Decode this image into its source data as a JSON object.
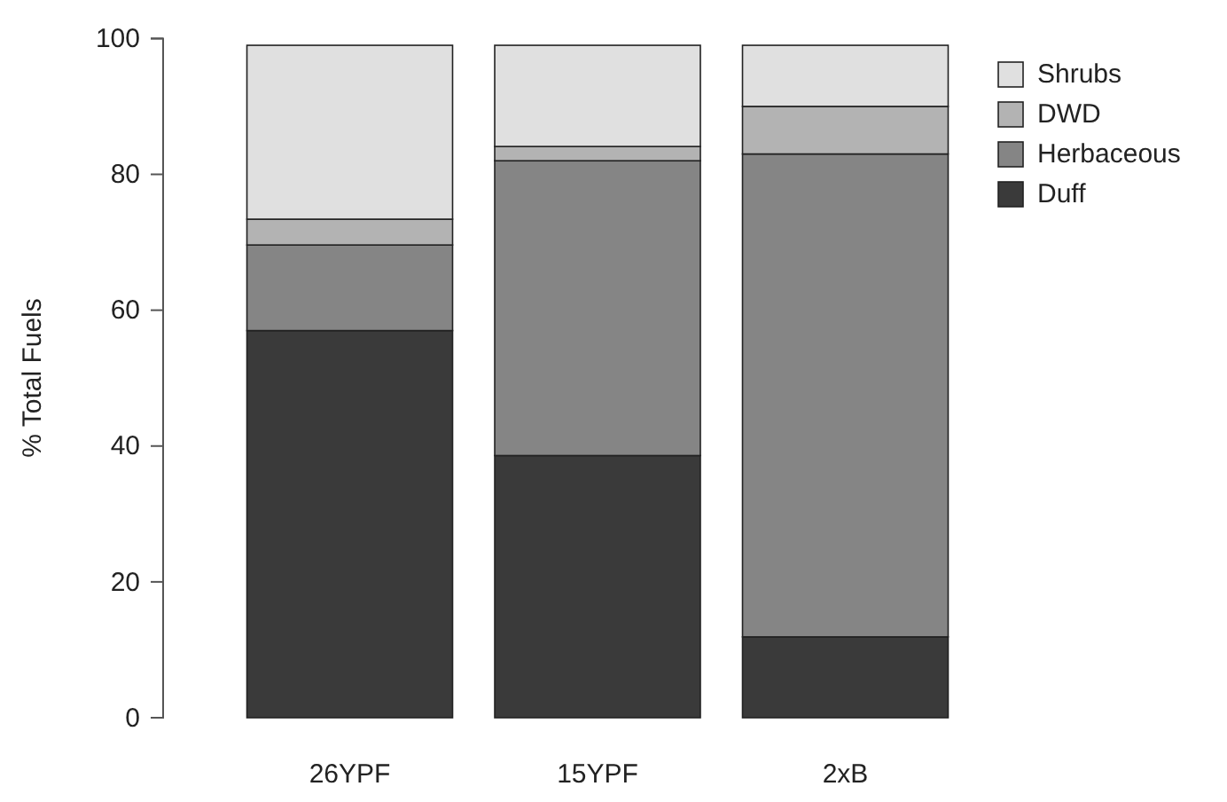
{
  "chart_data": {
    "type": "bar",
    "stacked": true,
    "ylabel": "% Total Fuels",
    "categories": [
      "26YPF",
      "15YPF",
      "2xB"
    ],
    "series": [
      {
        "name": "Duff",
        "color": "#3a3a3a",
        "values": [
          57.0,
          38.6,
          11.9
        ]
      },
      {
        "name": "Herbaceous",
        "color": "#858585",
        "values": [
          12.6,
          43.4,
          71.1
        ]
      },
      {
        "name": "DWD",
        "color": "#b3b3b3",
        "values": [
          3.8,
          2.1,
          7.0
        ]
      },
      {
        "name": "Shrubs",
        "color": "#e0e0e0",
        "values": [
          25.6,
          14.9,
          9.0
        ]
      }
    ],
    "ylim": [
      0,
      100
    ],
    "yticks": [
      0,
      20,
      40,
      60,
      80,
      100
    ],
    "grid": false,
    "legend": "top right"
  }
}
